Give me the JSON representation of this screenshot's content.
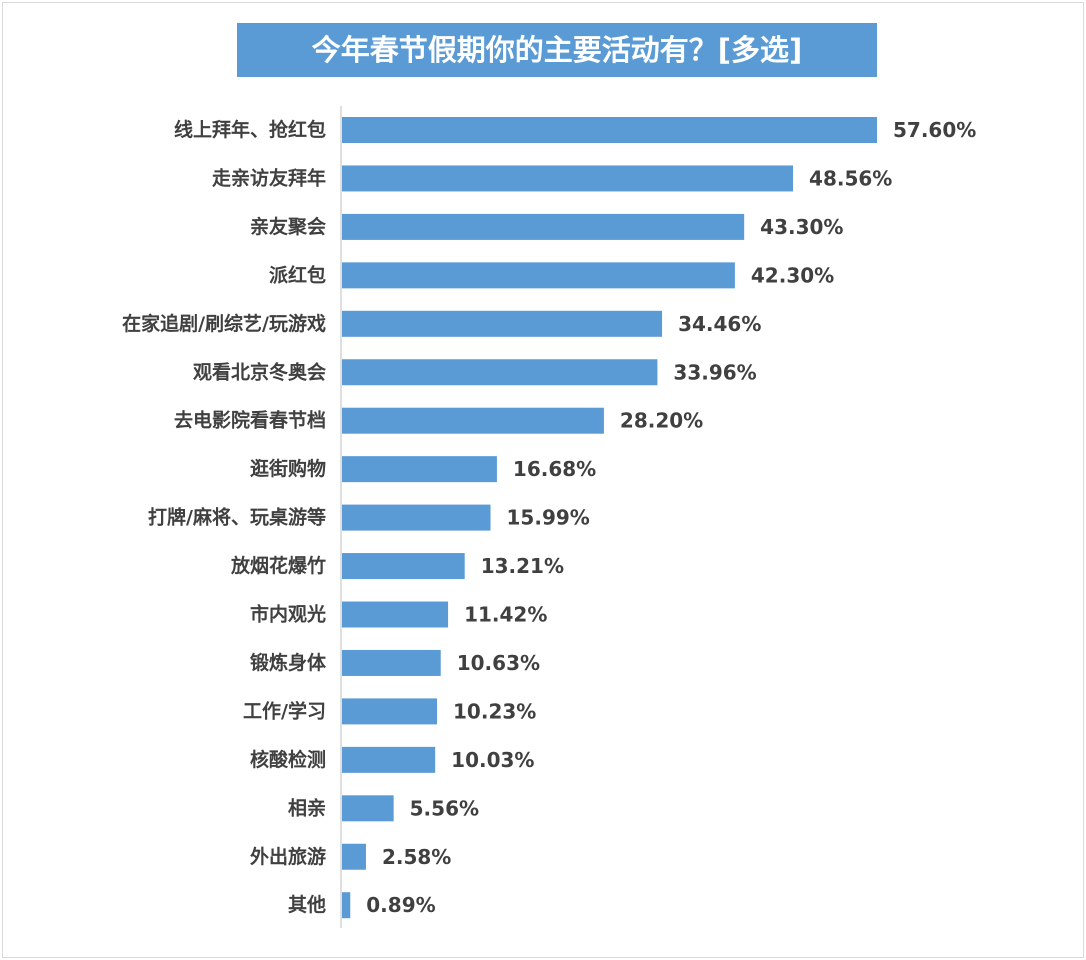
{
  "chart_data": {
    "type": "bar",
    "orientation": "horizontal",
    "title": "今年春节假期你的主要活动有？[多选]",
    "xlabel": "",
    "ylabel": "",
    "grid": false,
    "legend": "none",
    "value_suffix": "%",
    "colors": {
      "bar": "#5b9bd5",
      "title_bg": "#5b9bd5",
      "title_text": "#ffffff",
      "label_text": "#404040",
      "axis": "#bfbfbf"
    },
    "categories": [
      "线上拜年、抢红包",
      "走亲访友拜年",
      "亲友聚会",
      "派红包",
      "在家追剧/刷综艺/玩游戏",
      "观看北京冬奥会",
      "去电影院看春节档",
      "逛街购物",
      "打牌/麻将、玩桌游等",
      "放烟花爆竹",
      "市内观光",
      "锻炼身体",
      "工作/学习",
      "核酸检测",
      "相亲",
      "外出旅游",
      "其他"
    ],
    "values": [
      57.6,
      48.56,
      43.3,
      42.3,
      34.46,
      33.96,
      28.2,
      16.68,
      15.99,
      13.21,
      11.42,
      10.63,
      10.23,
      10.03,
      5.56,
      2.58,
      0.89
    ],
    "value_labels": [
      "57.60%",
      "48.56%",
      "43.30%",
      "42.30%",
      "34.46%",
      "33.96%",
      "28.20%",
      "16.68%",
      "15.99%",
      "13.21%",
      "11.42%",
      "10.63%",
      "10.23%",
      "10.03%",
      "5.56%",
      "2.58%",
      "0.89%"
    ],
    "xlim": [
      0,
      60
    ]
  }
}
